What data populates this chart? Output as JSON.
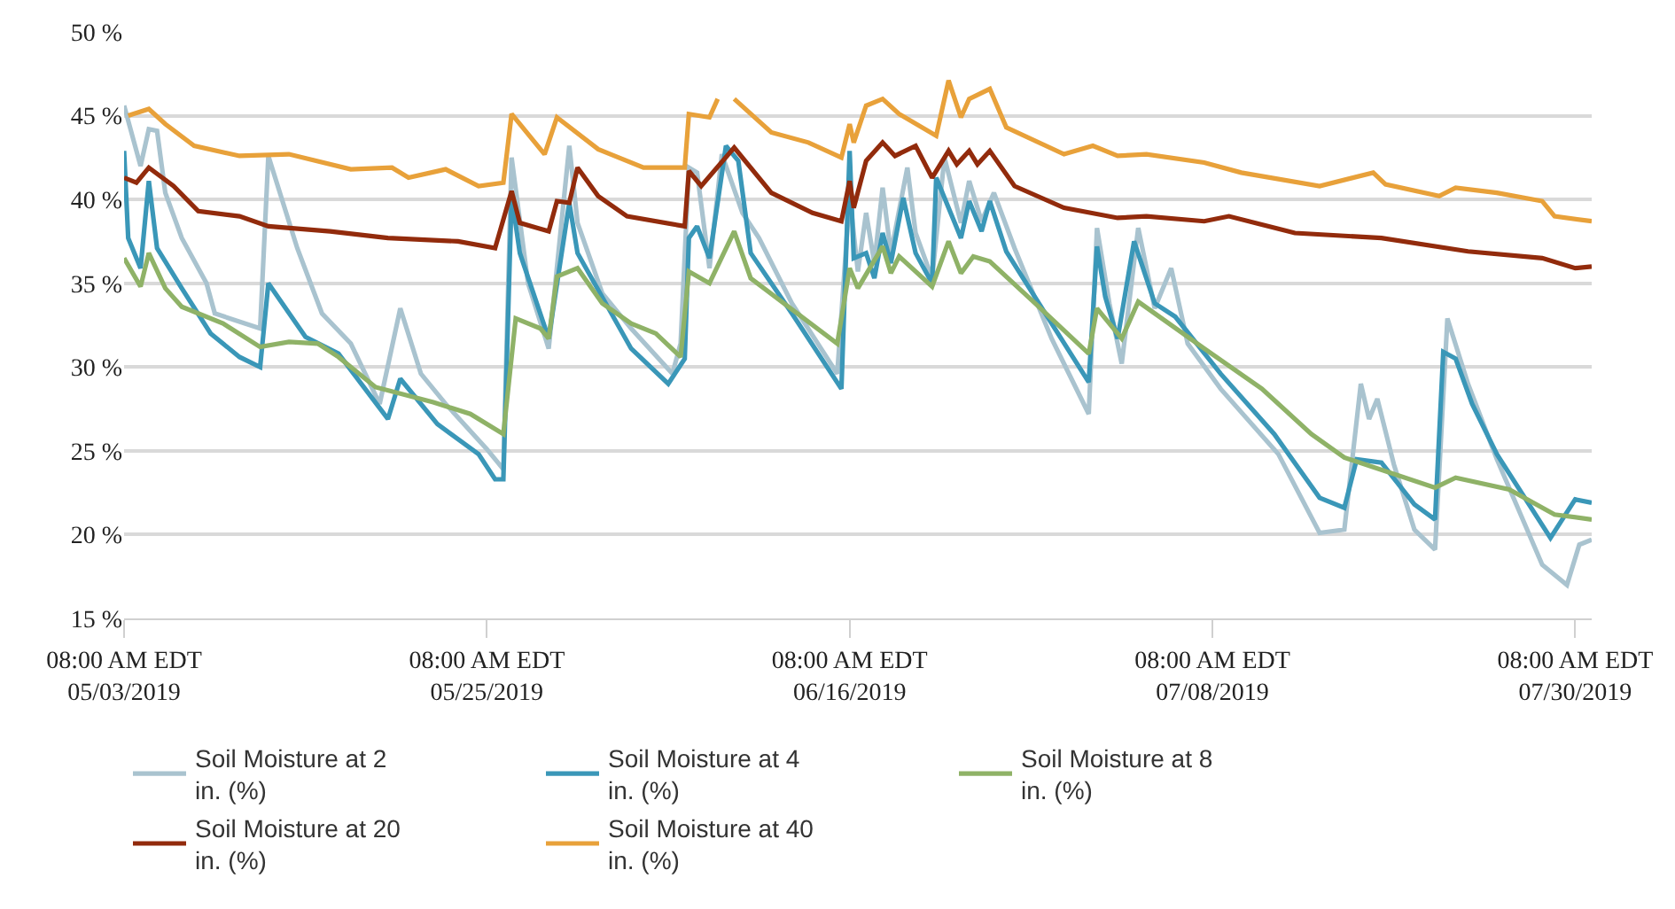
{
  "chart_data": {
    "type": "line",
    "xlim": [
      "2019-05-03T08:00",
      "2019-07-31T08:00"
    ],
    "xticks": [
      {
        "value": "2019-05-03T08:00",
        "label": "08:00 AM EDT\n05/03/2019"
      },
      {
        "value": "2019-05-25T08:00",
        "label": "08:00 AM EDT\n05/25/2019"
      },
      {
        "value": "2019-06-16T08:00",
        "label": "08:00 AM EDT\n06/16/2019"
      },
      {
        "value": "2019-07-08T08:00",
        "label": "08:00 AM EDT\n07/08/2019"
      },
      {
        "value": "2019-07-30T08:00",
        "label": "08:00 AM EDT\n07/30/2019"
      }
    ],
    "ylim": [
      15,
      50
    ],
    "yticks": [
      {
        "value": 15,
        "label": "15 %"
      },
      {
        "value": 20,
        "label": "20 %"
      },
      {
        "value": 25,
        "label": "25 %"
      },
      {
        "value": 30,
        "label": "30 %"
      },
      {
        "value": 35,
        "label": "35 %"
      },
      {
        "value": 40,
        "label": "40 %"
      },
      {
        "value": 45,
        "label": "45 %"
      },
      {
        "value": 50,
        "label": "50 %"
      }
    ],
    "grid": "y",
    "legend": "bottom",
    "series": [
      {
        "name": "Soil Moisture at 2 in. (%)",
        "color": "#a9c3cf",
        "x": [
          "2019-05-03T08:00",
          "2019-05-04T08:00",
          "2019-05-04T20:00",
          "2019-05-05T08:00",
          "2019-05-05T20:00",
          "2019-05-06T20:00",
          "2019-05-08T08:00",
          "2019-05-08T20:00",
          "2019-05-11T14:00",
          "2019-05-12T02:00",
          "2019-05-13T20:00",
          "2019-05-15T08:00",
          "2019-05-17T02:00",
          "2019-05-18T20:00",
          "2019-05-20T02:00",
          "2019-05-21T08:00",
          "2019-05-22T20:00",
          "2019-05-25T08:00",
          "2019-05-26T08:00",
          "2019-05-26T20:00",
          "2019-05-27T20:00",
          "2019-05-29T02:00",
          "2019-05-30T08:00",
          "2019-05-30T20:00",
          "2019-06-01T08:00",
          "2019-06-03T02:00",
          "2019-06-05T14:00",
          "2019-06-06T02:00",
          "2019-06-06T14:00",
          "2019-06-07T02:00",
          "2019-06-07T20:00",
          "2019-06-08T14:00",
          "2019-06-09T20:00",
          "2019-06-10T20:00",
          "2019-06-12T20:00",
          "2019-06-15T14:00",
          "2019-06-16T08:00",
          "2019-06-16T20:00",
          "2019-06-17T08:00",
          "2019-06-17T20:00",
          "2019-06-18T08:00",
          "2019-06-18T20:00",
          "2019-06-19T20:00",
          "2019-06-20T08:00",
          "2019-06-21T08:00",
          "2019-06-22T02:00",
          "2019-06-23T02:00",
          "2019-06-23T14:00",
          "2019-06-24T08:00",
          "2019-06-25T02:00",
          "2019-06-26T08:00",
          "2019-06-28T14:00",
          "2019-06-30T20:00",
          "2019-07-01T08:00",
          "2019-07-02T02:00",
          "2019-07-02T20:00",
          "2019-07-03T20:00",
          "2019-07-04T20:00",
          "2019-07-05T20:00",
          "2019-07-06T20:00",
          "2019-07-08T20:00",
          "2019-07-12T08:00",
          "2019-07-14T20:00",
          "2019-07-16T08:00",
          "2019-07-17T08:00",
          "2019-07-17T20:00",
          "2019-07-18T08:00",
          "2019-07-19T08:00",
          "2019-07-20T14:00",
          "2019-07-21T20:00",
          "2019-07-22T14:00",
          "2019-07-23T20:00",
          "2019-07-25T14:00",
          "2019-07-28T08:00",
          "2019-07-29T20:00",
          "2019-07-30T14:00",
          "2019-07-31T08:00"
        ],
        "values": [
          45.6,
          42.0,
          44.2,
          44.1,
          40.4,
          37.7,
          35.0,
          33.2,
          32.3,
          42.6,
          37.1,
          33.2,
          31.4,
          27.8,
          33.5,
          29.6,
          27.8,
          25.1,
          23.9,
          42.5,
          35.0,
          31.1,
          43.2,
          38.6,
          34.4,
          32.3,
          29.6,
          31.4,
          41.9,
          41.6,
          35.9,
          42.7,
          39.2,
          37.7,
          33.8,
          29.6,
          40.2,
          35.7,
          39.2,
          36.2,
          40.7,
          36.8,
          41.9,
          38.0,
          35.3,
          42.5,
          38.6,
          41.1,
          38.7,
          40.4,
          37.1,
          31.7,
          27.2,
          38.3,
          33.8,
          30.2,
          38.3,
          33.5,
          35.9,
          31.4,
          28.7,
          24.8,
          20.1,
          20.3,
          29.0,
          26.9,
          28.1,
          24.2,
          20.3,
          19.1,
          32.9,
          29.0,
          24.5,
          18.2,
          17.0,
          19.4,
          19.7
        ]
      },
      {
        "name": "Soil Moisture at 4 in. (%)",
        "color": "#3a97b8",
        "x": [
          "2019-05-03T08:00",
          "2019-05-03T14:00",
          "2019-05-04T08:00",
          "2019-05-04T20:00",
          "2019-05-05T08:00",
          "2019-05-06T20:00",
          "2019-05-08T14:00",
          "2019-05-10T08:00",
          "2019-05-11T14:00",
          "2019-05-12T02:00",
          "2019-05-14T08:00",
          "2019-05-16T08:00",
          "2019-05-19T08:00",
          "2019-05-20T02:00",
          "2019-05-22T08:00",
          "2019-05-24T20:00",
          "2019-05-25T20:00",
          "2019-05-26T08:00",
          "2019-05-26T20:00",
          "2019-05-27T08:00",
          "2019-05-29T02:00",
          "2019-05-30T08:00",
          "2019-05-30T20:00",
          "2019-06-03T02:00",
          "2019-06-05T08:00",
          "2019-06-06T08:00",
          "2019-06-06T14:00",
          "2019-06-07T02:00",
          "2019-06-07T20:00",
          "2019-06-08T20:00",
          "2019-06-09T14:00",
          "2019-06-10T08:00",
          "2019-06-12T20:00",
          "2019-06-15T20:00",
          "2019-06-16T08:00",
          "2019-06-16T14:00",
          "2019-06-17T08:00",
          "2019-06-17T20:00",
          "2019-06-18T08:00",
          "2019-06-18T20:00",
          "2019-06-19T14:00",
          "2019-06-20T08:00",
          "2019-06-21T08:00",
          "2019-06-21T14:00",
          "2019-06-23T02:00",
          "2019-06-23T14:00",
          "2019-06-24T08:00",
          "2019-06-24T20:00",
          "2019-06-25T20:00",
          "2019-06-28T14:00",
          "2019-06-30T20:00",
          "2019-07-01T08:00",
          "2019-07-01T20:00",
          "2019-07-02T14:00",
          "2019-07-03T14:00",
          "2019-07-04T20:00",
          "2019-07-06T02:00",
          "2019-07-08T20:00",
          "2019-07-12T02:00",
          "2019-07-14T20:00",
          "2019-07-16T08:00",
          "2019-07-17T02:00",
          "2019-07-18T14:00",
          "2019-07-20T14:00",
          "2019-07-21T20:00",
          "2019-07-22T08:00",
          "2019-07-23T02:00",
          "2019-07-24T02:00",
          "2019-07-25T14:00",
          "2019-07-28T20:00",
          "2019-07-30T08:00",
          "2019-07-31T08:00"
        ],
        "values": [
          42.9,
          37.7,
          35.9,
          41.1,
          37.1,
          34.7,
          32.0,
          30.6,
          30.0,
          35.0,
          31.8,
          30.8,
          26.9,
          29.3,
          26.6,
          24.8,
          23.3,
          23.3,
          40.2,
          36.8,
          31.7,
          39.8,
          36.8,
          31.1,
          29.0,
          30.5,
          37.7,
          38.4,
          36.5,
          43.2,
          42.3,
          36.8,
          33.2,
          28.7,
          42.9,
          36.5,
          36.8,
          35.3,
          38.0,
          36.2,
          40.1,
          36.8,
          35.0,
          41.3,
          37.7,
          39.9,
          38.1,
          39.9,
          36.9,
          32.6,
          29.1,
          37.2,
          34.2,
          31.7,
          37.5,
          33.8,
          33.0,
          29.6,
          26.0,
          22.2,
          21.6,
          24.5,
          24.3,
          21.8,
          20.9,
          30.9,
          30.5,
          27.8,
          24.8,
          19.8,
          22.1,
          21.9
        ]
      },
      {
        "name": "Soil Moisture at 8 in. (%)",
        "color": "#8fb267",
        "x": [
          "2019-05-03T08:00",
          "2019-05-04T08:00",
          "2019-05-04T20:00",
          "2019-05-05T20:00",
          "2019-05-06T20:00",
          "2019-05-09T08:00",
          "2019-05-11T14:00",
          "2019-05-13T08:00",
          "2019-05-15T02:00",
          "2019-05-16T08:00",
          "2019-05-18T14:00",
          "2019-05-22T02:00",
          "2019-05-24T08:00",
          "2019-05-26T08:00",
          "2019-05-27T02:00",
          "2019-05-28T14:00",
          "2019-05-29T02:00",
          "2019-05-29T14:00",
          "2019-05-30T20:00",
          "2019-06-01T08:00",
          "2019-06-03T02:00",
          "2019-06-04T14:00",
          "2019-06-06T02:00",
          "2019-06-06T14:00",
          "2019-06-07T20:00",
          "2019-06-09T08:00",
          "2019-06-10T08:00",
          "2019-06-15T14:00",
          "2019-06-16T08:00",
          "2019-06-16T20:00",
          "2019-06-18T08:00",
          "2019-06-18T20:00",
          "2019-06-19T08:00",
          "2019-06-21T08:00",
          "2019-06-22T08:00",
          "2019-06-23T02:00",
          "2019-06-23T20:00",
          "2019-06-24T20:00",
          "2019-06-27T14:00",
          "2019-06-30T20:00",
          "2019-07-01T08:00",
          "2019-07-02T20:00",
          "2019-07-03T20:00",
          "2019-07-07T20:00",
          "2019-07-11T08:00",
          "2019-07-14T08:00",
          "2019-07-16T08:00",
          "2019-07-21T20:00",
          "2019-07-23T02:00",
          "2019-07-26T08:00",
          "2019-07-29T02:00",
          "2019-07-31T08:00"
        ],
        "values": [
          36.5,
          34.8,
          36.8,
          34.7,
          33.6,
          32.6,
          31.2,
          31.5,
          31.4,
          30.6,
          28.8,
          27.9,
          27.2,
          26.0,
          32.9,
          32.3,
          31.7,
          35.4,
          35.9,
          33.8,
          32.6,
          32.0,
          30.6,
          35.7,
          35.0,
          38.1,
          35.3,
          31.4,
          35.9,
          34.7,
          37.2,
          35.6,
          36.6,
          34.8,
          37.5,
          35.6,
          36.6,
          36.3,
          33.8,
          30.8,
          33.5,
          31.7,
          33.9,
          31.1,
          28.7,
          26.0,
          24.6,
          22.8,
          23.4,
          22.7,
          21.2,
          20.9
        ]
      },
      {
        "name": "Soil Moisture at 20 in. (%)",
        "color": "#922b0c",
        "x": [
          "2019-05-03T08:00",
          "2019-05-04T02:00",
          "2019-05-04T20:00",
          "2019-05-06T08:00",
          "2019-05-07T20:00",
          "2019-05-10T08:00",
          "2019-05-12T02:00",
          "2019-05-15T20:00",
          "2019-05-19T08:00",
          "2019-05-23T14:00",
          "2019-05-25T20:00",
          "2019-05-26T20:00",
          "2019-05-27T08:00",
          "2019-05-29T02:00",
          "2019-05-29T14:00",
          "2019-05-30T08:00",
          "2019-05-30T20:00",
          "2019-06-01T02:00",
          "2019-06-02T20:00",
          "2019-06-06T08:00",
          "2019-06-06T14:00",
          "2019-06-07T08:00",
          "2019-06-09T08:00",
          "2019-06-11T14:00",
          "2019-06-14T02:00",
          "2019-06-15T20:00",
          "2019-06-16T08:00",
          "2019-06-16T14:00",
          "2019-06-17T08:00",
          "2019-06-18T08:00",
          "2019-06-19T02:00",
          "2019-06-20T08:00",
          "2019-06-21T08:00",
          "2019-06-22T08:00",
          "2019-06-22T20:00",
          "2019-06-23T14:00",
          "2019-06-24T02:00",
          "2019-06-24T20:00",
          "2019-06-26T08:00",
          "2019-06-29T08:00",
          "2019-07-02T14:00",
          "2019-07-04T08:00",
          "2019-07-07T20:00",
          "2019-07-09T08:00",
          "2019-07-13T08:00",
          "2019-07-18T14:00",
          "2019-07-23T20:00",
          "2019-07-28T08:00",
          "2019-07-30T08:00",
          "2019-07-31T08:00"
        ],
        "values": [
          41.3,
          41.0,
          41.9,
          40.8,
          39.3,
          39.0,
          38.4,
          38.1,
          37.7,
          37.5,
          37.1,
          40.5,
          38.6,
          38.1,
          39.9,
          39.8,
          41.9,
          40.2,
          39.0,
          38.4,
          41.7,
          40.8,
          43.1,
          40.4,
          39.2,
          38.7,
          41.1,
          39.5,
          42.3,
          43.4,
          42.6,
          43.2,
          41.3,
          42.9,
          42.1,
          42.9,
          42.1,
          42.9,
          40.8,
          39.5,
          38.9,
          39.0,
          38.7,
          39.0,
          38.0,
          37.7,
          36.9,
          36.5,
          35.9,
          36.0
        ]
      },
      {
        "name": "Soil Moisture at 40 in. (%)",
        "color": "#e8a13a",
        "x": [
          "2019-05-03T14:00",
          "2019-05-04T20:00",
          "2019-05-05T20:00",
          "2019-05-07T14:00",
          "2019-05-10T08:00",
          "2019-05-13T08:00",
          "2019-05-17T02:00",
          "2019-05-19T14:00",
          "2019-05-20T14:00",
          "2019-05-22T20:00",
          "2019-05-24T20:00",
          "2019-05-26T08:00",
          "2019-05-26T20:00",
          "2019-05-28T20:00",
          "2019-05-29T14:00",
          "2019-06-01T02:00",
          "2019-06-01T20:00",
          "2019-06-03T20:00",
          "2019-06-06T08:00",
          "2019-06-06T14:00",
          "2019-06-07T20:00",
          "2019-06-08T08:00",
          "2019-06-08T20:00",
          "2019-06-09T08:00",
          "2019-06-11T14:00",
          "2019-06-13T20:00",
          "2019-06-15T20:00",
          "2019-06-16T08:00",
          "2019-06-16T14:00",
          "2019-06-17T08:00",
          "2019-06-18T08:00",
          "2019-06-19T08:00",
          "2019-06-21T14:00",
          "2019-06-22T08:00",
          "2019-06-23T02:00",
          "2019-06-23T14:00",
          "2019-06-24T20:00",
          "2019-06-25T20:00",
          "2019-06-29T08:00",
          "2019-07-01T02:00",
          "2019-07-02T14:00",
          "2019-07-04T08:00",
          "2019-07-07T20:00",
          "2019-07-10T02:00",
          "2019-07-14T20:00",
          "2019-07-18T02:00",
          "2019-07-18T20:00",
          "2019-07-22T02:00",
          "2019-07-23T02:00",
          "2019-07-25T14:00",
          "2019-07-28T08:00",
          "2019-07-29T02:00",
          "2019-07-31T08:00"
        ],
        "values": [
          45.0,
          45.4,
          44.5,
          43.2,
          42.6,
          42.7,
          41.8,
          41.9,
          41.3,
          41.8,
          40.8,
          41.0,
          45.1,
          42.7,
          44.9,
          43.0,
          42.7,
          41.9,
          41.9,
          45.1,
          44.9,
          46.0,
          null,
          46.0,
          44.0,
          43.4,
          42.5,
          44.5,
          43.4,
          45.6,
          46.0,
          45.1,
          43.8,
          47.1,
          44.9,
          46.0,
          46.6,
          44.3,
          42.7,
          43.2,
          42.6,
          42.7,
          42.2,
          41.6,
          40.8,
          41.6,
          40.9,
          40.2,
          40.7,
          40.4,
          39.9,
          39.0,
          38.7
        ]
      }
    ]
  }
}
